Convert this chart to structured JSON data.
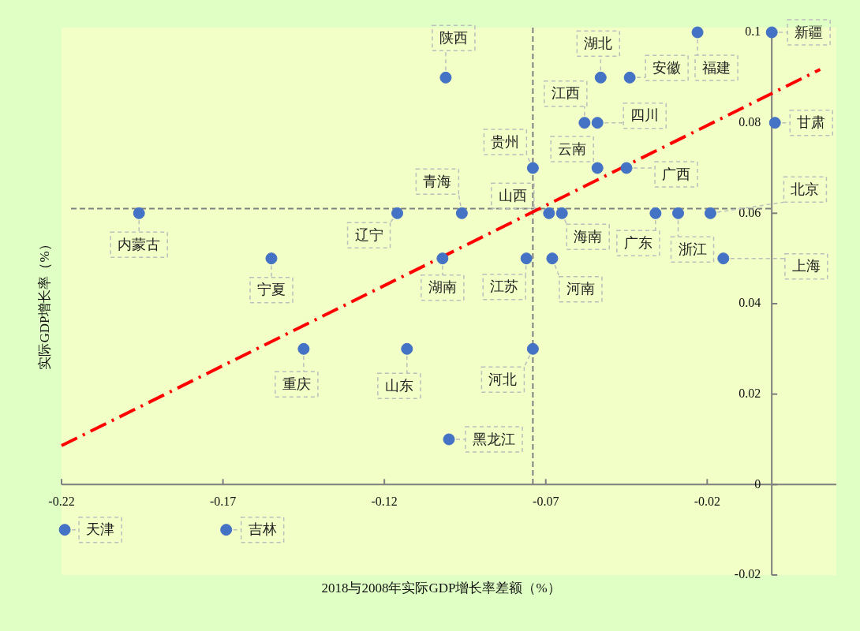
{
  "chart_data": {
    "type": "scatter",
    "xlabel": "2018与2008年实际GDP增长率差额（%）",
    "ylabel": "实际GDP增长率（%）",
    "xlim": [
      -0.22,
      0.02
    ],
    "ylim": [
      -0.02,
      0.1
    ],
    "xticks": [
      -0.22,
      -0.17,
      -0.12,
      -0.07,
      -0.02
    ],
    "yticks": [
      -0.02,
      0,
      0.02,
      0.04,
      0.06,
      0.08,
      0.1
    ],
    "grid": false,
    "legend": false,
    "series": [
      {
        "color": "#4472c4",
        "marker": "circle",
        "x": [
          -0.219,
          -0.169,
          -0.196,
          -0.155,
          -0.145,
          -0.113,
          -0.1,
          -0.102,
          -0.116,
          -0.096,
          -0.101,
          -0.074,
          -0.069,
          -0.065,
          -0.076,
          -0.068,
          -0.074,
          -0.058,
          -0.054,
          -0.053,
          -0.044,
          -0.054,
          -0.045,
          -0.036,
          -0.029,
          -0.019,
          -0.015,
          -0.023,
          0,
          0.001
        ],
        "values": [
          -0.01,
          -0.01,
          0.06,
          0.05,
          0.03,
          0.03,
          0.01,
          0.05,
          0.06,
          0.06,
          0.09,
          0.07,
          0.06,
          0.06,
          0.05,
          0.05,
          0.03,
          0.08,
          0.08,
          0.09,
          0.09,
          0.07,
          0.07,
          0.06,
          0.06,
          0.06,
          0.05,
          0.1,
          0.1,
          0.08
        ]
      },
      {
        "type": "line",
        "color": "#ff0000",
        "line_style": "dashed",
        "x": [
          -0.22,
          0.015
        ],
        "values": [
          0.0086,
          0.0918
        ]
      }
    ],
    "ref_lines": [
      {
        "axis": "x",
        "value": -0.074,
        "color": "#808080",
        "line_style": "dashed"
      },
      {
        "axis": "y",
        "value": 0.061,
        "color": "#808080",
        "line_style": "dashed"
      }
    ],
    "annotations": [
      {
        "text": "天津",
        "x": -0.219,
        "y": -0.01
      },
      {
        "text": "吉林",
        "x": -0.169,
        "y": -0.01
      },
      {
        "text": "内蒙古",
        "x": -0.196,
        "y": 0.06
      },
      {
        "text": "宁夏",
        "x": -0.155,
        "y": 0.05
      },
      {
        "text": "重庆",
        "x": -0.145,
        "y": 0.03
      },
      {
        "text": "山东",
        "x": -0.113,
        "y": 0.03
      },
      {
        "text": "黑龙江",
        "x": -0.1,
        "y": 0.01
      },
      {
        "text": "湖南",
        "x": -0.102,
        "y": 0.05
      },
      {
        "text": "辽宁",
        "x": -0.116,
        "y": 0.06
      },
      {
        "text": "青海",
        "x": -0.096,
        "y": 0.06
      },
      {
        "text": "陕西",
        "x": -0.101,
        "y": 0.09
      },
      {
        "text": "贵州",
        "x": -0.074,
        "y": 0.07
      },
      {
        "text": "山西",
        "x": -0.069,
        "y": 0.06
      },
      {
        "text": "海南",
        "x": -0.065,
        "y": 0.06
      },
      {
        "text": "江苏",
        "x": -0.076,
        "y": 0.05
      },
      {
        "text": "河南",
        "x": -0.068,
        "y": 0.05
      },
      {
        "text": "河北",
        "x": -0.074,
        "y": 0.03
      },
      {
        "text": "江西",
        "x": -0.058,
        "y": 0.08
      },
      {
        "text": "四川",
        "x": -0.054,
        "y": 0.08
      },
      {
        "text": "湖北",
        "x": -0.053,
        "y": 0.09
      },
      {
        "text": "安徽",
        "x": -0.044,
        "y": 0.09
      },
      {
        "text": "云南",
        "x": -0.054,
        "y": 0.07
      },
      {
        "text": "广西",
        "x": -0.045,
        "y": 0.07
      },
      {
        "text": "广东",
        "x": -0.036,
        "y": 0.06
      },
      {
        "text": "浙江",
        "x": -0.029,
        "y": 0.06
      },
      {
        "text": "北京",
        "x": -0.019,
        "y": 0.06
      },
      {
        "text": "上海",
        "x": -0.015,
        "y": 0.05
      },
      {
        "text": "福建",
        "x": -0.023,
        "y": 0.1
      },
      {
        "text": "新疆",
        "x": 0,
        "y": 0.1
      },
      {
        "text": "甘肃",
        "x": 0.001,
        "y": 0.08
      }
    ]
  }
}
